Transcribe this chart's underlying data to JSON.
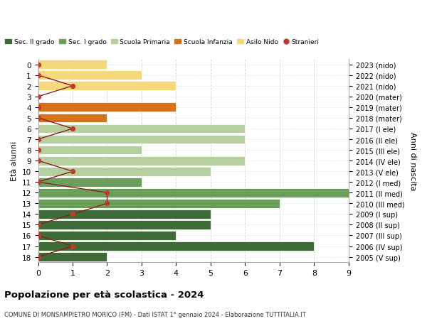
{
  "ages": [
    18,
    17,
    16,
    15,
    14,
    13,
    12,
    11,
    10,
    9,
    8,
    7,
    6,
    5,
    4,
    3,
    2,
    1,
    0
  ],
  "right_labels": [
    "2005 (V sup)",
    "2006 (IV sup)",
    "2007 (III sup)",
    "2008 (II sup)",
    "2009 (I sup)",
    "2010 (III med)",
    "2011 (II med)",
    "2012 (I med)",
    "2013 (V ele)",
    "2014 (IV ele)",
    "2015 (III ele)",
    "2016 (II ele)",
    "2017 (I ele)",
    "2018 (mater)",
    "2019 (mater)",
    "2020 (mater)",
    "2021 (nido)",
    "2022 (nido)",
    "2023 (nido)"
  ],
  "bar_values": [
    2,
    8,
    4,
    5,
    5,
    7,
    9,
    3,
    5,
    6,
    3,
    6,
    6,
    2,
    4,
    0,
    4,
    3,
    2
  ],
  "bar_colors": [
    "#3d6b35",
    "#3d6b35",
    "#3d6b35",
    "#3d6b35",
    "#3d6b35",
    "#6a9e5a",
    "#6a9e5a",
    "#6a9e5a",
    "#b5cf9e",
    "#b5cf9e",
    "#b5cf9e",
    "#b5cf9e",
    "#b5cf9e",
    "#d4731a",
    "#d4731a",
    "#d4731a",
    "#f5d87a",
    "#f5d87a",
    "#f5d87a"
  ],
  "stranieri_values": [
    0,
    1,
    0,
    0,
    1,
    2,
    2,
    0,
    1,
    0,
    0,
    0,
    1,
    0,
    0,
    0,
    1,
    0,
    0
  ],
  "legend_labels": [
    "Sec. II grado",
    "Sec. I grado",
    "Scuola Primaria",
    "Scuola Infanzia",
    "Asilo Nido",
    "Stranieri"
  ],
  "legend_colors": [
    "#3d6b35",
    "#6a9e5a",
    "#b5cf9e",
    "#d4731a",
    "#f5d87a",
    "#c0392b"
  ],
  "title": "Popolazione per età scolastica - 2024",
  "subtitle": "COMUNE DI MONSAMPIETRO MORICO (FM) - Dati ISTAT 1° gennaio 2024 - Elaborazione TUTTITALIA.IT",
  "ylabel_left": "Età alunni",
  "ylabel_right": "Anni di nascita",
  "xlim": [
    0,
    9
  ],
  "background_color": "#ffffff",
  "grid_color": "#cccccc"
}
